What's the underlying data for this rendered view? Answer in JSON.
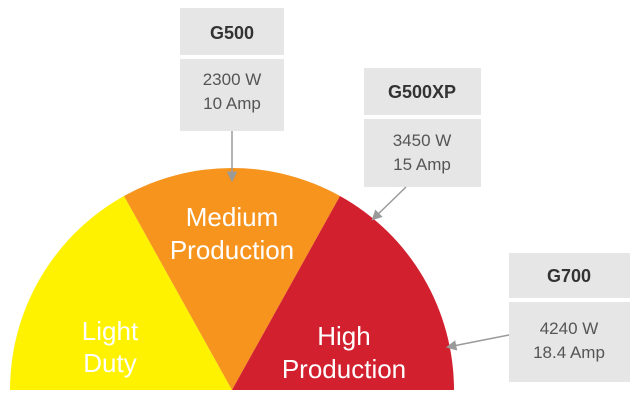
{
  "segments": {
    "light": {
      "line1": "Light",
      "line2": "Duty",
      "color": "#FFF200"
    },
    "medium": {
      "line1": "Medium",
      "line2": "Production",
      "color": "#F7941D"
    },
    "high": {
      "line1": "High",
      "line2": "Production",
      "color": "#D2202F"
    }
  },
  "cards": {
    "g500": {
      "title": "G500",
      "watts": "2300 W",
      "amps": "10 Amp"
    },
    "g500xp": {
      "title": "G500XP",
      "watts": "3450 W",
      "amps": "15 Amp"
    },
    "g700": {
      "title": "G700",
      "watts": "4240 W",
      "amps": "18.4 Amp"
    }
  },
  "colors": {
    "card_header": "#E6E6E6",
    "card_body": "#E6E6E6",
    "arrow": "#999999"
  }
}
